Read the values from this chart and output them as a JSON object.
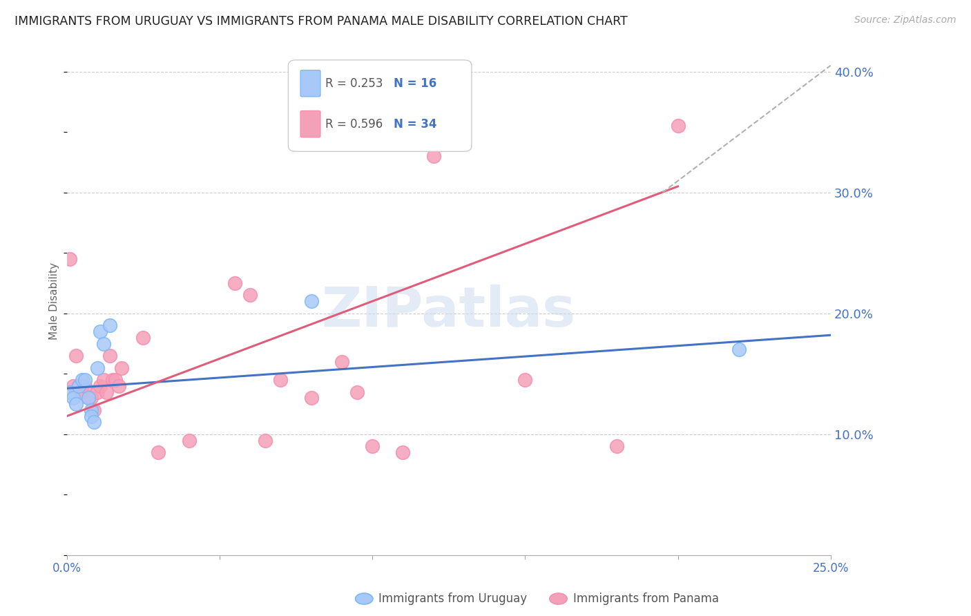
{
  "title": "IMMIGRANTS FROM URUGUAY VS IMMIGRANTS FROM PANAMA MALE DISABILITY CORRELATION CHART",
  "source": "Source: ZipAtlas.com",
  "ylabel": "Male Disability",
  "xlim": [
    0.0,
    0.25
  ],
  "ylim": [
    0.0,
    0.42
  ],
  "xticks": [
    0.0,
    0.05,
    0.1,
    0.15,
    0.2,
    0.25
  ],
  "xtick_labels": [
    "0.0%",
    "",
    "",
    "",
    "",
    "25.0%"
  ],
  "yticks_right": [
    0.1,
    0.2,
    0.3,
    0.4
  ],
  "ytick_labels_right": [
    "10.0%",
    "20.0%",
    "30.0%",
    "40.0%"
  ],
  "grid_yticks": [
    0.1,
    0.2,
    0.3,
    0.4
  ],
  "watermark": "ZIPatlas",
  "bottom_legend": [
    {
      "label": "Immigrants from Uruguay",
      "color": "#a8c8f8"
    },
    {
      "label": "Immigrants from Panama",
      "color": "#f4a0b8"
    }
  ],
  "uruguay_x": [
    0.001,
    0.002,
    0.003,
    0.004,
    0.005,
    0.006,
    0.007,
    0.008,
    0.008,
    0.009,
    0.01,
    0.011,
    0.012,
    0.014,
    0.08,
    0.22
  ],
  "uruguay_y": [
    0.135,
    0.13,
    0.125,
    0.14,
    0.145,
    0.145,
    0.13,
    0.12,
    0.115,
    0.11,
    0.155,
    0.185,
    0.175,
    0.19,
    0.21,
    0.17
  ],
  "panama_x": [
    0.001,
    0.002,
    0.003,
    0.004,
    0.005,
    0.006,
    0.007,
    0.008,
    0.009,
    0.01,
    0.011,
    0.012,
    0.013,
    0.014,
    0.015,
    0.016,
    0.017,
    0.018,
    0.025,
    0.03,
    0.04,
    0.055,
    0.06,
    0.065,
    0.07,
    0.08,
    0.09,
    0.095,
    0.1,
    0.11,
    0.12,
    0.15,
    0.18,
    0.2
  ],
  "panama_y": [
    0.245,
    0.14,
    0.165,
    0.14,
    0.135,
    0.14,
    0.13,
    0.13,
    0.12,
    0.135,
    0.14,
    0.145,
    0.135,
    0.165,
    0.145,
    0.145,
    0.14,
    0.155,
    0.18,
    0.085,
    0.095,
    0.225,
    0.215,
    0.095,
    0.145,
    0.13,
    0.16,
    0.135,
    0.09,
    0.085,
    0.33,
    0.145,
    0.09,
    0.355
  ],
  "blue_line": {
    "x0": 0.0,
    "y0": 0.138,
    "x1": 0.25,
    "y1": 0.182
  },
  "pink_line": {
    "x0": 0.0,
    "y0": 0.115,
    "x1": 0.2,
    "y1": 0.305
  },
  "dash_line": {
    "x0": 0.195,
    "y0": 0.3,
    "x1": 0.25,
    "y1": 0.405
  },
  "blue_line_color": "#4472c4",
  "pink_line_color": "#e05c7a",
  "dot_blue_face": "#a8c8f8",
  "dot_pink_face": "#f4a0b8",
  "dot_blue_edge": "#7eb8f7",
  "dot_pink_edge": "#f48fb1",
  "background_color": "#ffffff",
  "title_fontsize": 12.5,
  "axis_label_color": "#4472c4",
  "tick_color": "#4472c4",
  "grid_color": "#cccccc",
  "r_value_color": "#888888",
  "n_value_color": "#4472c4"
}
